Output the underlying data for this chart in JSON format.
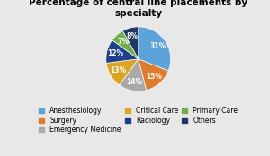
{
  "title": "Percentage of central line placements by\nspecialty",
  "labels": [
    "Anesthesiology",
    "Surgery",
    "Emergency Medicine",
    "Critical Care",
    "Radiology",
    "Primary Care",
    "Others"
  ],
  "values": [
    31,
    15,
    14,
    13,
    12,
    7,
    8
  ],
  "colors": [
    "#5BA3D9",
    "#E07B2A",
    "#A9A9A9",
    "#DAA520",
    "#1F3F8C",
    "#70AD47",
    "#1F3864"
  ],
  "startangle": 90,
  "pctdistance": 0.72,
  "legend_ncol": 3,
  "title_fontsize": 7.5,
  "pct_fontsize": 5.5,
  "legend_fontsize": 5.5,
  "background_color": "#E8E8E8"
}
